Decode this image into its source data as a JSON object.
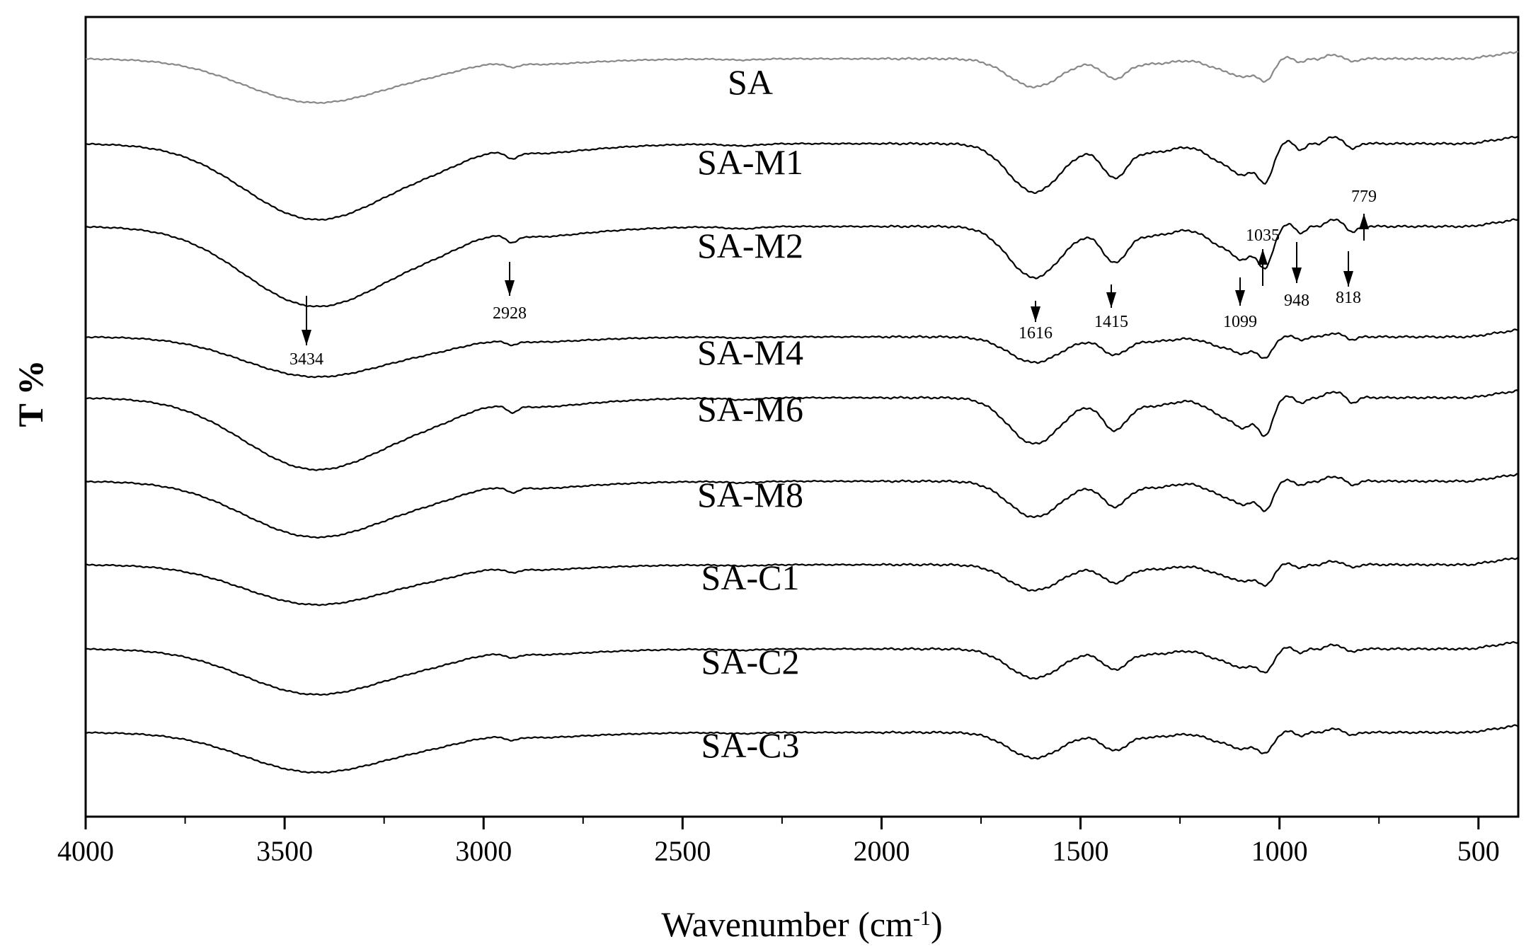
{
  "chart_data": {
    "type": "line",
    "xlabel": "Wavenumber (cm",
    "xlabel_sup": "-1",
    "xlabel_close": ")",
    "ylabel": "T %",
    "xlim": [
      4000,
      400
    ],
    "x_reversed": true,
    "xticks": [
      4000,
      3500,
      3000,
      2500,
      2000,
      1500,
      1000,
      500
    ],
    "grid": false,
    "legend": "none",
    "series_labels_inline": true,
    "series": [
      {
        "name": "SA",
        "color": "#888888",
        "amp": 0.55
      },
      {
        "name": "SA-M1",
        "color": "#000000",
        "amp": 0.95
      },
      {
        "name": "SA-M2",
        "color": "#000000",
        "amp": 1.0
      },
      {
        "name": "SA-M4",
        "color": "#000000",
        "amp": 0.5
      },
      {
        "name": "SA-M6",
        "color": "#000000",
        "amp": 0.9
      },
      {
        "name": "SA-M8",
        "color": "#000000",
        "amp": 0.7
      },
      {
        "name": "SA-C1",
        "color": "#000000",
        "amp": 0.5
      },
      {
        "name": "SA-C2",
        "color": "#000000",
        "amp": 0.57
      },
      {
        "name": "SA-C3",
        "color": "#000000",
        "amp": 0.5
      }
    ],
    "peaks": [
      {
        "wn": 3434,
        "label": "3434",
        "dir": "down"
      },
      {
        "wn": 2928,
        "label": "2928",
        "dir": "down"
      },
      {
        "wn": 1616,
        "label": "1616",
        "dir": "down"
      },
      {
        "wn": 1415,
        "label": "1415",
        "dir": "down"
      },
      {
        "wn": 1099,
        "label": "1099",
        "dir": "down"
      },
      {
        "wn": 1035,
        "label": "1035",
        "dir": "up"
      },
      {
        "wn": 948,
        "label": "948",
        "dir": "down"
      },
      {
        "wn": 818,
        "label": "818",
        "dir": "down"
      },
      {
        "wn": 779,
        "label": "779",
        "dir": "up"
      }
    ]
  }
}
